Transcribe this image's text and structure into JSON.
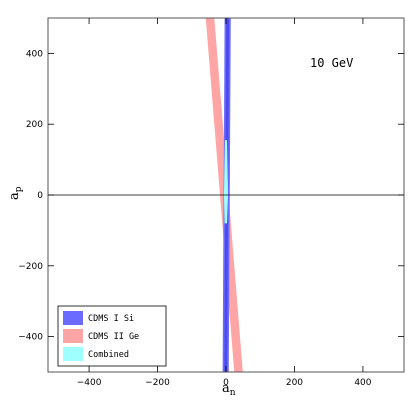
{
  "chart_data": {
    "type": "area",
    "annotation": "10 GeV",
    "xlabel_main": "a",
    "xlabel_sub": "n",
    "ylabel_main": "a",
    "ylabel_sub": "p",
    "xlim": [
      -520,
      520
    ],
    "ylim": [
      -500,
      500
    ],
    "xticks": [
      -400,
      -200,
      0,
      200,
      400
    ],
    "yticks": [
      -400,
      -200,
      0,
      200,
      400
    ],
    "zero_line": "horizontal at a_p = 0",
    "legend_position": "bottom-left",
    "legend": [
      {
        "name": "CDMS I Si",
        "color": "#6b6bff"
      },
      {
        "name": "CDMS II Ge",
        "color": "#ffa5a5"
      },
      {
        "name": "Combined",
        "color": "#9fffff"
      }
    ],
    "regions": [
      {
        "name": "CDMS II Ge",
        "color": "#ffa5a5",
        "polygon": [
          [
            -60,
            510
          ],
          [
            -35,
            510
          ],
          [
            50,
            -510
          ],
          [
            25,
            -510
          ]
        ]
      },
      {
        "name": "CDMS I Si",
        "color": "#6b6bff",
        "polygon": [
          [
            -4,
            510
          ],
          [
            14,
            510
          ],
          [
            8,
            -510
          ],
          [
            -10,
            -510
          ]
        ]
      },
      {
        "name": "CDMS I Si (inner)",
        "color": "#4a4aee",
        "polygon": [
          [
            1,
            510
          ],
          [
            9,
            510
          ],
          [
            3,
            -510
          ],
          [
            -5,
            -510
          ]
        ]
      },
      {
        "name": "Combined",
        "color": "#9fffff",
        "polygon": [
          [
            -3,
            155
          ],
          [
            3,
            155
          ],
          [
            6,
            0
          ],
          [
            3,
            -80
          ],
          [
            -4,
            -80
          ],
          [
            -6,
            0
          ]
        ]
      }
    ]
  }
}
